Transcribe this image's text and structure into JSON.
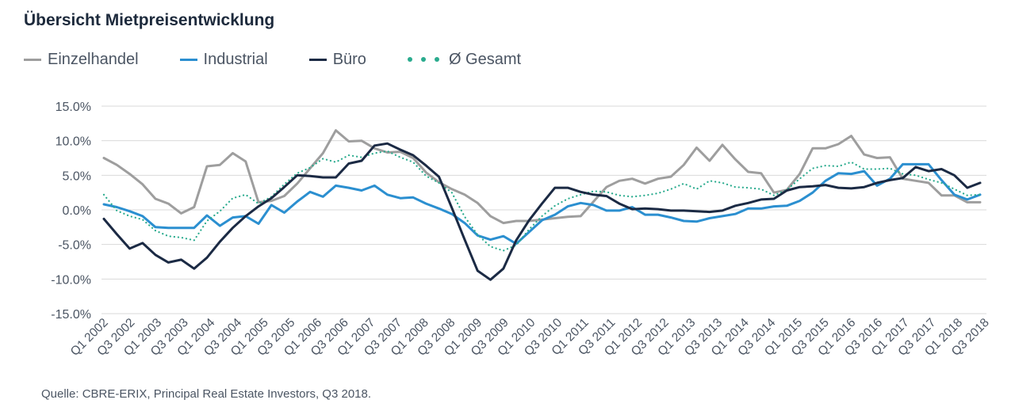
{
  "title": "Übersicht Mietpreisentwicklung",
  "source": "Quelle: CBRE-ERIX, Principal Real Estate Investors, Q3 2018.",
  "legend": [
    {
      "label": "Einzelhandel",
      "color": "#9e9e9e",
      "style": "line"
    },
    {
      "label": "Industrial",
      "color": "#2b8fd0",
      "style": "line"
    },
    {
      "label": "Büro",
      "color": "#1b2a44",
      "style": "line"
    },
    {
      "label": "Ø Gesamt",
      "color": "#2aab8e",
      "style": "dots"
    }
  ],
  "chart_data": {
    "type": "line",
    "title": "Übersicht Mietpreisentwicklung",
    "xlabel": "",
    "ylabel": "",
    "ylim": [
      -15,
      15
    ],
    "yticks": [
      "15.0%",
      "10.0%",
      "5.0%",
      "0.0%",
      "-5.0%",
      "-10.0%",
      "-15.0%"
    ],
    "grid": true,
    "legend_position": "top-left",
    "x_tick_labels": [
      "Q1 2002",
      "Q3 2002",
      "Q1 2003",
      "Q3 2003",
      "Q1 2004",
      "Q3 2004",
      "Q1 2005",
      "Q3 2005",
      "Q1 2006",
      "Q3 2006",
      "Q1 2007",
      "Q3 2007",
      "Q1 2008",
      "Q3 2008",
      "Q1 2009",
      "Q3 2009",
      "Q1 2010",
      "Q3 2010",
      "Q1 2011",
      "Q3 2011",
      "Q1 2012",
      "Q3 2012",
      "Q1 2013",
      "Q3 2013",
      "Q1 2014",
      "Q3 2014",
      "Q1 2015",
      "Q3 2015",
      "Q1 2016",
      "Q3 2016",
      "Q1 2017",
      "Q3 2017",
      "Q1 2018",
      "Q3 2018"
    ],
    "series": [
      {
        "name": "Einzelhandel",
        "color": "#9e9e9e",
        "dash": "solid",
        "values": [
          7.5,
          6.5,
          5.2,
          3.7,
          1.6,
          0.9,
          -0.5,
          0.4,
          6.3,
          6.5,
          8.2,
          7.0,
          1.1,
          1.3,
          2.0,
          3.8,
          6.0,
          8.2,
          11.5,
          9.9,
          10.0,
          8.9,
          8.3,
          8.4,
          7.5,
          5.4,
          4.0,
          3.0,
          2.2,
          1.0,
          -0.9,
          -1.9,
          -1.6,
          -1.6,
          -1.4,
          -1.2,
          -1.0,
          -0.9,
          1.2,
          3.3,
          4.2,
          4.5,
          3.8,
          4.5,
          4.8,
          6.5,
          9.0,
          7.1,
          9.4,
          7.3,
          5.5,
          5.3,
          2.5,
          2.9,
          5.2,
          8.9,
          8.9,
          9.5,
          10.7,
          8.0,
          7.5,
          7.6,
          4.5,
          4.2,
          3.9,
          2.1,
          2.1,
          1.1,
          1.1
        ]
      },
      {
        "name": "Industrial",
        "color": "#2b8fd0",
        "dash": "solid",
        "values": [
          0.8,
          0.4,
          -0.2,
          -0.9,
          -2.5,
          -2.6,
          -2.6,
          -2.6,
          -0.8,
          -2.3,
          -1.1,
          -0.9,
          -2.0,
          0.7,
          -0.4,
          1.2,
          2.6,
          1.9,
          3.5,
          3.2,
          2.8,
          3.5,
          2.2,
          1.7,
          1.8,
          0.9,
          0.2,
          -0.6,
          -1.9,
          -3.7,
          -4.3,
          -3.8,
          -4.9,
          -3.2,
          -1.5,
          -0.7,
          0.5,
          1.0,
          0.7,
          -0.1,
          -0.1,
          0.4,
          -0.7,
          -0.7,
          -1.1,
          -1.6,
          -1.7,
          -1.2,
          -0.9,
          -0.6,
          0.2,
          0.2,
          0.5,
          0.6,
          1.3,
          2.5,
          4.2,
          5.3,
          5.2,
          5.6,
          3.5,
          4.5,
          6.6,
          6.6,
          6.6,
          4.3,
          2.2,
          1.5,
          2.2
        ]
      },
      {
        "name": "Büro",
        "color": "#1b2a44",
        "dash": "solid",
        "values": [
          -1.3,
          -3.5,
          -5.6,
          -4.8,
          -6.5,
          -7.6,
          -7.2,
          -8.5,
          -6.9,
          -4.6,
          -2.6,
          -0.9,
          0.5,
          1.7,
          3.3,
          5.0,
          4.9,
          4.7,
          4.7,
          6.7,
          7.1,
          9.3,
          9.6,
          8.7,
          7.9,
          6.4,
          4.8,
          0.3,
          -4.3,
          -8.8,
          -10.1,
          -8.5,
          -4.4,
          -1.5,
          0.9,
          3.2,
          3.2,
          2.6,
          2.2,
          2.0,
          0.9,
          0.1,
          0.2,
          0.1,
          -0.1,
          -0.1,
          -0.2,
          -0.3,
          -0.1,
          0.6,
          1.0,
          1.5,
          1.6,
          2.8,
          3.3,
          3.4,
          3.6,
          3.2,
          3.1,
          3.3,
          3.9,
          4.3,
          4.6,
          6.2,
          5.6,
          5.9,
          5.0,
          3.2,
          3.9
        ]
      },
      {
        "name": "Ø Gesamt",
        "color": "#2aab8e",
        "dash": "dotted",
        "values": [
          2.2,
          -0.1,
          -0.9,
          -1.4,
          -3.0,
          -3.8,
          -4.0,
          -4.4,
          -1.6,
          -0.2,
          1.7,
          2.2,
          0.9,
          1.9,
          3.7,
          5.3,
          6.1,
          7.4,
          6.9,
          7.9,
          7.6,
          8.2,
          8.5,
          7.6,
          6.9,
          4.9,
          3.9,
          2.5,
          -1.0,
          -3.6,
          -5.3,
          -5.9,
          -5.1,
          -2.8,
          -0.9,
          0.6,
          1.6,
          2.2,
          2.7,
          2.6,
          2.1,
          1.9,
          2.1,
          2.4,
          3.0,
          3.8,
          3.0,
          4.2,
          3.9,
          3.3,
          3.2,
          3.0,
          2.1,
          2.9,
          4.5,
          6.0,
          6.4,
          6.3,
          6.9,
          5.9,
          5.9,
          6.0,
          5.2,
          5.0,
          4.4,
          3.9,
          3.0,
          2.1,
          2.2
        ]
      }
    ]
  }
}
